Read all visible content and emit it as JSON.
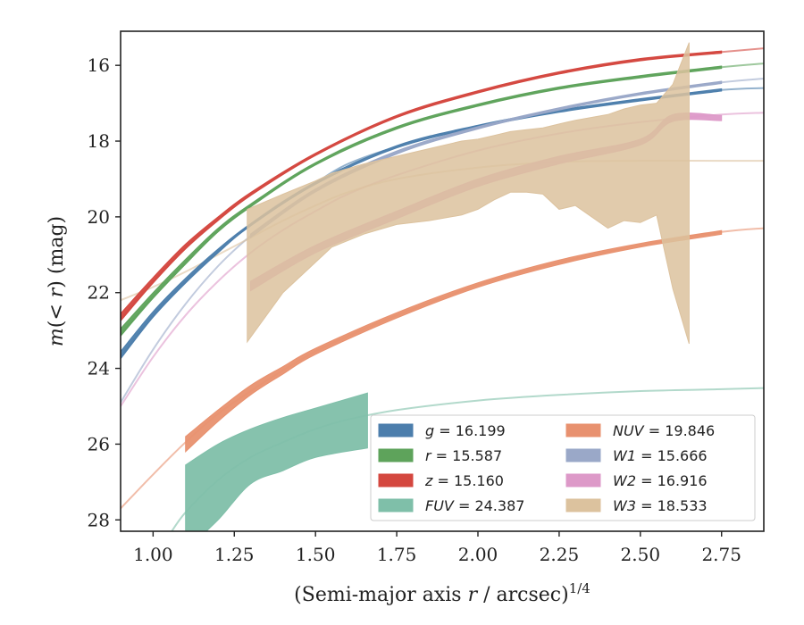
{
  "chart_data": {
    "type": "line",
    "xlabel": "(Semi-major axis r / arcsec)",
    "xlabel_parts": {
      "main": "(Semi-major axis ",
      "r": "r",
      "rest": " / arcsec)",
      "sup": "1/4"
    },
    "ylabel": "m(< r) (mag)",
    "ylabel_parts": {
      "m": "m",
      "open": "(< ",
      "r": "r",
      "rest": ") (mag)"
    },
    "xlim": [
      0.9,
      2.88
    ],
    "ylim": [
      28.3,
      15.1
    ],
    "y_inverted": true,
    "xticks": [
      "1.00",
      "1.25",
      "1.50",
      "1.75",
      "2.00",
      "2.25",
      "2.50",
      "2.75"
    ],
    "xtick_values": [
      1.0,
      1.25,
      1.5,
      1.75,
      2.0,
      2.25,
      2.5,
      2.75
    ],
    "yticks": [
      "16",
      "18",
      "20",
      "22",
      "24",
      "26",
      "28"
    ],
    "ytick_values": [
      16,
      18,
      20,
      22,
      24,
      26,
      28
    ],
    "grid": false,
    "legend_position": "lower-right",
    "legend": [
      {
        "var": "g",
        "value": "16.199",
        "color": "#4c7eac"
      },
      {
        "var": "NUV",
        "value": "19.846",
        "color": "#e8916f"
      },
      {
        "var": "r",
        "value": "15.587",
        "color": "#5ea35b"
      },
      {
        "var": "W1",
        "value": "15.666",
        "color": "#9aa8c8"
      },
      {
        "var": "z",
        "value": "15.160",
        "color": "#d4473f"
      },
      {
        "var": "W2",
        "value": "16.916",
        "color": "#dd99c8"
      },
      {
        "var": "FUV",
        "value": "24.387",
        "color": "#7fbfa9"
      },
      {
        "var": "W3",
        "value": "18.533",
        "color": "#dcc29e"
      }
    ],
    "series": [
      {
        "name": "g = 16.199",
        "color": "#4c7eac",
        "fit_x": [
          0.9,
          1.0,
          1.1,
          1.2,
          1.3,
          1.4,
          1.5,
          1.6,
          1.75,
          2.0,
          2.25,
          2.5,
          2.75,
          2.88
        ],
        "fit_y": [
          23.7,
          22.6,
          21.7,
          20.9,
          20.2,
          19.6,
          19.1,
          18.6,
          18.15,
          17.6,
          17.2,
          16.9,
          16.65,
          16.6
        ],
        "band_x": [
          0.9,
          1.0,
          1.1,
          1.2,
          1.3,
          1.5,
          1.75,
          2.0,
          2.25,
          2.5,
          2.75
        ],
        "band_lo": [
          23.55,
          22.5,
          21.62,
          20.85,
          20.18,
          19.08,
          18.12,
          17.58,
          17.18,
          16.88,
          16.62
        ],
        "band_hi": [
          23.75,
          22.65,
          21.75,
          20.95,
          20.24,
          19.14,
          18.18,
          17.64,
          17.24,
          16.94,
          16.68
        ]
      },
      {
        "name": "r = 15.587",
        "color": "#5ea35b",
        "fit_x": [
          0.9,
          1.0,
          1.1,
          1.2,
          1.3,
          1.4,
          1.5,
          1.6,
          1.75,
          2.0,
          2.25,
          2.5,
          2.75,
          2.88
        ],
        "fit_y": [
          23.1,
          22.1,
          21.2,
          20.35,
          19.7,
          19.1,
          18.6,
          18.15,
          17.65,
          17.05,
          16.6,
          16.3,
          16.05,
          15.95
        ],
        "band_x": [
          0.9,
          1.0,
          1.1,
          1.2,
          1.3,
          1.5,
          1.75,
          2.0,
          2.25,
          2.5,
          2.75
        ],
        "band_lo": [
          22.95,
          22.0,
          21.12,
          20.3,
          19.66,
          18.57,
          17.62,
          17.02,
          16.57,
          16.27,
          16.02
        ],
        "band_hi": [
          23.15,
          22.15,
          21.25,
          20.4,
          19.74,
          18.63,
          17.68,
          17.08,
          16.63,
          16.33,
          16.08
        ]
      },
      {
        "name": "z = 15.160",
        "color": "#d4473f",
        "fit_x": [
          0.9,
          1.0,
          1.1,
          1.2,
          1.3,
          1.4,
          1.5,
          1.6,
          1.75,
          2.0,
          2.25,
          2.5,
          2.75,
          2.88
        ],
        "fit_y": [
          22.7,
          21.7,
          20.8,
          20.05,
          19.4,
          18.85,
          18.35,
          17.9,
          17.35,
          16.7,
          16.2,
          15.85,
          15.65,
          15.55
        ],
        "band_x": [
          0.9,
          1.0,
          1.1,
          1.2,
          1.3,
          1.5,
          1.75,
          2.0,
          2.25,
          2.5,
          2.75
        ],
        "band_lo": [
          22.55,
          21.6,
          20.72,
          20.0,
          19.36,
          18.32,
          17.32,
          16.67,
          16.17,
          15.82,
          15.62
        ],
        "band_hi": [
          22.75,
          21.75,
          20.85,
          20.1,
          19.44,
          18.38,
          17.38,
          16.73,
          16.23,
          15.88,
          15.68
        ]
      },
      {
        "name": "FUV = 24.387",
        "color": "#7fbfa9",
        "fit_x": [
          1.05,
          1.1,
          1.2,
          1.3,
          1.4,
          1.5,
          1.6,
          1.75,
          2.0,
          2.25,
          2.5,
          2.75,
          2.88
        ],
        "fit_y": [
          28.4,
          27.8,
          26.95,
          26.35,
          25.95,
          25.6,
          25.35,
          25.1,
          24.85,
          24.7,
          24.6,
          24.55,
          24.52
        ],
        "band_x": [
          1.1,
          1.2,
          1.3,
          1.4,
          1.5,
          1.66
        ],
        "band_lo": [
          26.55,
          26.0,
          25.6,
          25.3,
          25.05,
          24.65
        ],
        "band_hi": [
          28.8,
          28.0,
          27.05,
          26.7,
          26.35,
          26.1
        ]
      },
      {
        "name": "NUV = 19.846",
        "color": "#e8916f",
        "fit_x": [
          0.9,
          1.0,
          1.1,
          1.2,
          1.3,
          1.4,
          1.5,
          1.6,
          1.75,
          2.0,
          2.25,
          2.5,
          2.75,
          2.88
        ],
        "fit_y": [
          27.7,
          26.8,
          25.95,
          25.2,
          24.6,
          24.05,
          23.55,
          23.15,
          22.6,
          21.8,
          21.2,
          20.75,
          20.4,
          20.3
        ],
        "band_x": [
          1.1,
          1.2,
          1.3,
          1.4,
          1.5,
          1.75,
          2.0,
          2.25,
          2.5,
          2.75
        ],
        "band_lo": [
          25.8,
          25.1,
          24.45,
          23.95,
          23.47,
          22.53,
          21.74,
          21.14,
          20.7,
          20.36
        ],
        "band_hi": [
          26.2,
          25.4,
          24.7,
          24.15,
          23.63,
          22.67,
          21.86,
          21.26,
          20.8,
          20.46
        ]
      },
      {
        "name": "W1 = 15.666",
        "color": "#9aa8c8",
        "fit_x": [
          0.9,
          1.0,
          1.1,
          1.2,
          1.3,
          1.4,
          1.5,
          1.6,
          1.75,
          2.0,
          2.25,
          2.5,
          2.75,
          2.88
        ],
        "fit_y": [
          24.9,
          23.5,
          22.3,
          21.3,
          20.5,
          19.85,
          19.3,
          18.85,
          18.3,
          17.65,
          17.15,
          16.75,
          16.45,
          16.35
        ],
        "band_x": [
          1.3,
          1.5,
          1.75,
          2.0,
          2.25,
          2.5,
          2.75
        ],
        "band_lo": [
          20.45,
          19.26,
          18.26,
          17.62,
          17.12,
          16.72,
          16.42
        ],
        "band_hi": [
          20.55,
          19.34,
          18.34,
          17.68,
          17.18,
          16.78,
          16.48
        ]
      },
      {
        "name": "W2 = 16.916",
        "color": "#dd99c8",
        "fit_x": [
          0.9,
          1.0,
          1.1,
          1.2,
          1.3,
          1.4,
          1.5,
          1.6,
          1.75,
          2.0,
          2.25,
          2.5,
          2.75,
          2.88
        ],
        "fit_y": [
          25.0,
          23.7,
          22.6,
          21.7,
          20.95,
          20.35,
          19.85,
          19.4,
          18.9,
          18.25,
          17.8,
          17.5,
          17.3,
          17.25
        ],
        "band_x": [
          1.3,
          1.5,
          1.75,
          2.0,
          2.25,
          2.5,
          2.6,
          2.75
        ],
        "band_lo": [
          21.7,
          20.75,
          19.85,
          19.0,
          18.4,
          17.95,
          17.3,
          17.32
        ],
        "band_hi": [
          21.95,
          20.95,
          20.05,
          19.2,
          18.6,
          18.1,
          17.48,
          17.46
        ]
      },
      {
        "name": "W3 = 18.533",
        "color": "#dcc29e",
        "fit_x": [
          0.9,
          1.0,
          1.1,
          1.2,
          1.3,
          1.4,
          1.5,
          1.6,
          1.75,
          2.0,
          2.25,
          2.5,
          2.75,
          2.88
        ],
        "fit_y": [
          22.2,
          21.85,
          21.45,
          21.0,
          20.55,
          20.1,
          19.7,
          19.35,
          19.0,
          18.7,
          18.55,
          18.52,
          18.52,
          18.52
        ],
        "band_x": [
          1.29,
          1.4,
          1.5,
          1.55,
          1.65,
          1.75,
          1.85,
          1.95,
          2.0,
          2.05,
          2.1,
          2.15,
          2.2,
          2.25,
          2.3,
          2.4,
          2.45,
          2.5,
          2.55,
          2.6,
          2.65
        ],
        "band_lo": [
          19.8,
          19.4,
          19.05,
          18.85,
          18.6,
          18.4,
          18.2,
          18.0,
          17.95,
          17.85,
          17.75,
          17.7,
          17.65,
          17.55,
          17.45,
          17.3,
          17.15,
          17.05,
          17.0,
          16.5,
          15.4
        ],
        "band_hi": [
          23.3,
          22.0,
          21.2,
          20.8,
          20.45,
          20.2,
          20.1,
          19.95,
          19.8,
          19.55,
          19.35,
          19.35,
          19.4,
          19.8,
          19.7,
          20.3,
          20.1,
          20.15,
          19.95,
          21.9,
          23.35
        ]
      }
    ]
  }
}
